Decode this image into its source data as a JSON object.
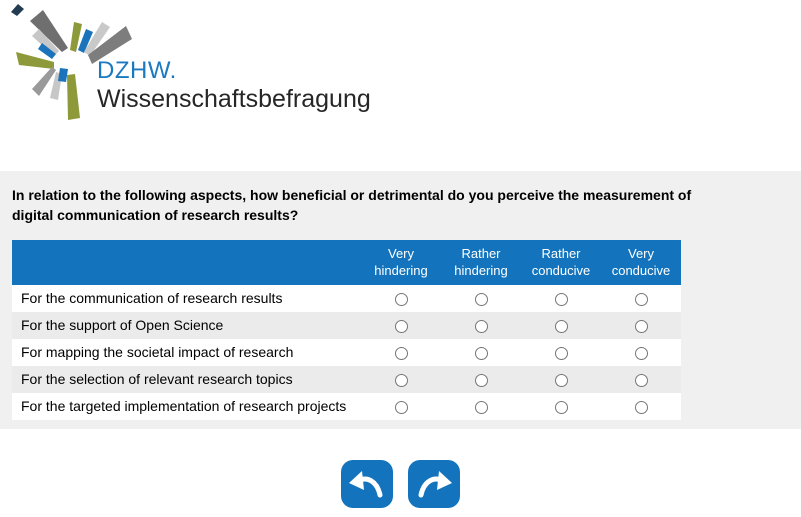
{
  "logo": {
    "brand": "DZHW.",
    "subtitle": "Wissenschaftsbefragung",
    "starburst_icon": "dzhw-starburst-logo"
  },
  "question": "In relation to the following aspects, how beneficial or detrimental do you perceive the measurement of digital communication of research results?",
  "matrix": {
    "column_headers": [
      "Very hindering",
      "Rather hindering",
      "Rather conducive",
      "Very conducive"
    ],
    "rows": [
      {
        "label": "For the communication of research results",
        "selected": null
      },
      {
        "label": "For the support of Open Science",
        "selected": null
      },
      {
        "label": "For mapping the societal impact of research",
        "selected": null
      },
      {
        "label": "For the selection of relevant research topics",
        "selected": null
      },
      {
        "label": "For the targeted implementation of research projects",
        "selected": null
      }
    ]
  },
  "navigation": {
    "back_icon": "back-arrow-icon",
    "forward_icon": "forward-arrow-icon"
  },
  "colors": {
    "primary_blue": "#1374bd",
    "brand_blue": "#1b79c0",
    "content_bg": "#f0f0f0",
    "row_alt": "#ebebeb",
    "radio_border": "#767676"
  }
}
